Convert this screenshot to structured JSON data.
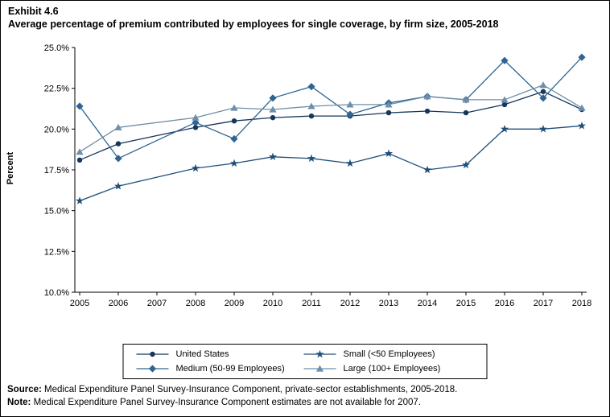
{
  "exhibit_label": "Exhibit 4.6",
  "title": "Average percentage of premium contributed by employees for single coverage, by firm size, 2005-2018",
  "chart_data": {
    "type": "line",
    "title": "Average percentage of premium contributed by employees for single coverage, by firm size, 2005-2018",
    "xlabel": "",
    "ylabel": "Percent",
    "ylim": [
      10.0,
      25.0
    ],
    "ytick_step": 2.5,
    "ytick_labels": [
      "10.0%",
      "12.5%",
      "15.0%",
      "17.5%",
      "20.0%",
      "22.5%",
      "25.0%"
    ],
    "grid": false,
    "legend_position": "bottom",
    "categories": [
      2005,
      2006,
      2007,
      2008,
      2009,
      2010,
      2011,
      2012,
      2013,
      2014,
      2015,
      2016,
      2017,
      2018
    ],
    "series": [
      {
        "name": "United States",
        "marker": "circle",
        "color": "#16365c",
        "values": [
          18.1,
          19.1,
          null,
          20.1,
          20.5,
          20.7,
          20.8,
          20.8,
          21.0,
          21.1,
          21.0,
          21.5,
          22.3,
          21.2
        ]
      },
      {
        "name": "Small (<50 Employees)",
        "marker": "star",
        "color": "#1f4e79",
        "values": [
          15.6,
          16.5,
          null,
          17.6,
          17.9,
          18.3,
          18.2,
          17.9,
          18.5,
          17.5,
          17.8,
          20.0,
          20.0,
          20.2
        ]
      },
      {
        "name": "Medium (50-99 Employees)",
        "marker": "diamond",
        "color": "#2f6490",
        "values": [
          21.4,
          18.2,
          null,
          20.4,
          19.4,
          21.9,
          22.6,
          20.9,
          21.6,
          22.0,
          21.8,
          24.2,
          21.9,
          24.4
        ]
      },
      {
        "name": "Large (100+ Employees)",
        "marker": "triangle",
        "color": "#6e8fa9",
        "values": [
          18.6,
          20.1,
          null,
          20.7,
          21.3,
          21.2,
          21.4,
          21.5,
          21.5,
          22.0,
          21.8,
          21.8,
          22.7,
          21.3
        ]
      }
    ]
  },
  "footer": {
    "source_label": "Source:",
    "source_text": "Medical Expenditure Panel Survey-Insurance Component, private-sector establishments, 2005-2018.",
    "note_label": "Note:",
    "note_text": "Medical Expenditure Panel Survey-Insurance Component estimates are not available for 2007."
  }
}
